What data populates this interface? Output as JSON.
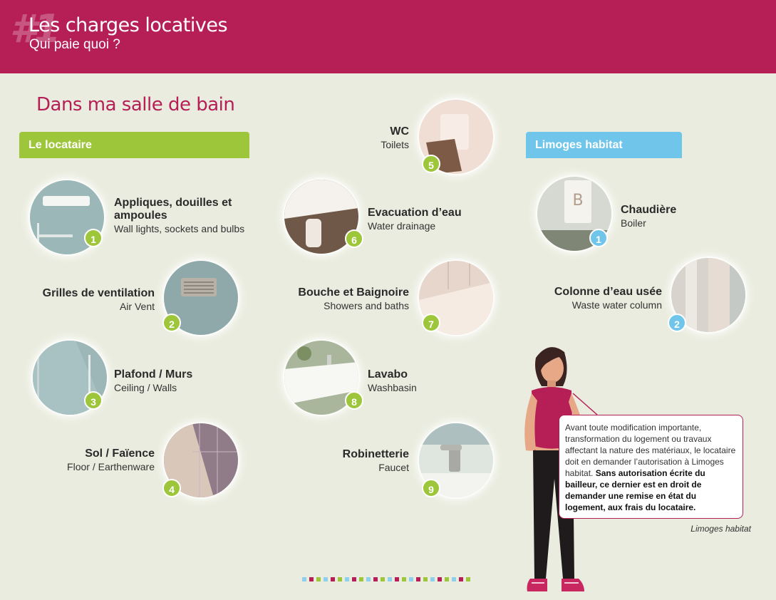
{
  "header": {
    "hash": "#1",
    "title": "Les charges locatives",
    "subtitle": "Qui paie quoi ?"
  },
  "section_title": "Dans ma salle de bain",
  "banners": {
    "tenant": "Le locataire",
    "landlord": "Limoges habitat"
  },
  "tenant_items": [
    {
      "num": "1",
      "fr": "Appliques, douilles et ampoules",
      "en": "Wall lights, sockets and bulbs",
      "icon": "wall-light-photo"
    },
    {
      "num": "2",
      "fr": "Grilles de ventilation",
      "en": "Air Vent",
      "icon": "air-vent-photo"
    },
    {
      "num": "3",
      "fr": "Plafond / Murs",
      "en": "Ceiling / Walls",
      "icon": "ceiling-walls-photo"
    },
    {
      "num": "4",
      "fr": "Sol / Faïence",
      "en": "Floor / Earthenware",
      "icon": "floor-tile-photo"
    },
    {
      "num": "5",
      "fr": "WC",
      "en": "Toilets",
      "icon": "toilet-photo"
    },
    {
      "num": "6",
      "fr": "Evacuation d’eau",
      "en": "Water drainage",
      "icon": "drain-photo"
    },
    {
      "num": "7",
      "fr": "Bouche et Baignoire",
      "en": "Showers and baths",
      "icon": "bathtub-photo"
    },
    {
      "num": "8",
      "fr": "Lavabo",
      "en": "Washbasin",
      "icon": "washbasin-photo"
    },
    {
      "num": "9",
      "fr": "Robinetterie",
      "en": "Faucet",
      "icon": "faucet-photo"
    }
  ],
  "landlord_items": [
    {
      "num": "1",
      "fr": "Chaudière",
      "en": "Boiler",
      "icon": "boiler-photo"
    },
    {
      "num": "2",
      "fr": "Colonne d’eau usée",
      "en": "Waste water column",
      "icon": "waste-water-column-photo"
    }
  ],
  "bubble": {
    "text": "Avant toute modification importante, transformation du logement ou travaux affectant la nature des matériaux, le locataire doit en demander l’autorisation à Limoges habitat.",
    "bold": "Sans autorisation écrite du bailleur, ce dernier est en droit de demander une remise en état du logement, aux frais du locataire."
  },
  "signature": "Limoges habitat",
  "colors": {
    "brand": "#b51f56",
    "tenant_green": "#9ec63b",
    "landlord_blue": "#6fc6ea",
    "background": "#e9ecde"
  },
  "page_dots": [
    "#8fd0ea",
    "#b51f56",
    "#9ec63b",
    "#8fd0ea",
    "#b51f56",
    "#9ec63b",
    "#8fd0ea",
    "#b51f56",
    "#9ec63b",
    "#8fd0ea",
    "#b51f56",
    "#9ec63b",
    "#8fd0ea",
    "#b51f56",
    "#9ec63b",
    "#8fd0ea",
    "#b51f56",
    "#9ec63b",
    "#8fd0ea",
    "#b51f56",
    "#9ec63b",
    "#8fd0ea",
    "#b51f56",
    "#9ec63b"
  ]
}
